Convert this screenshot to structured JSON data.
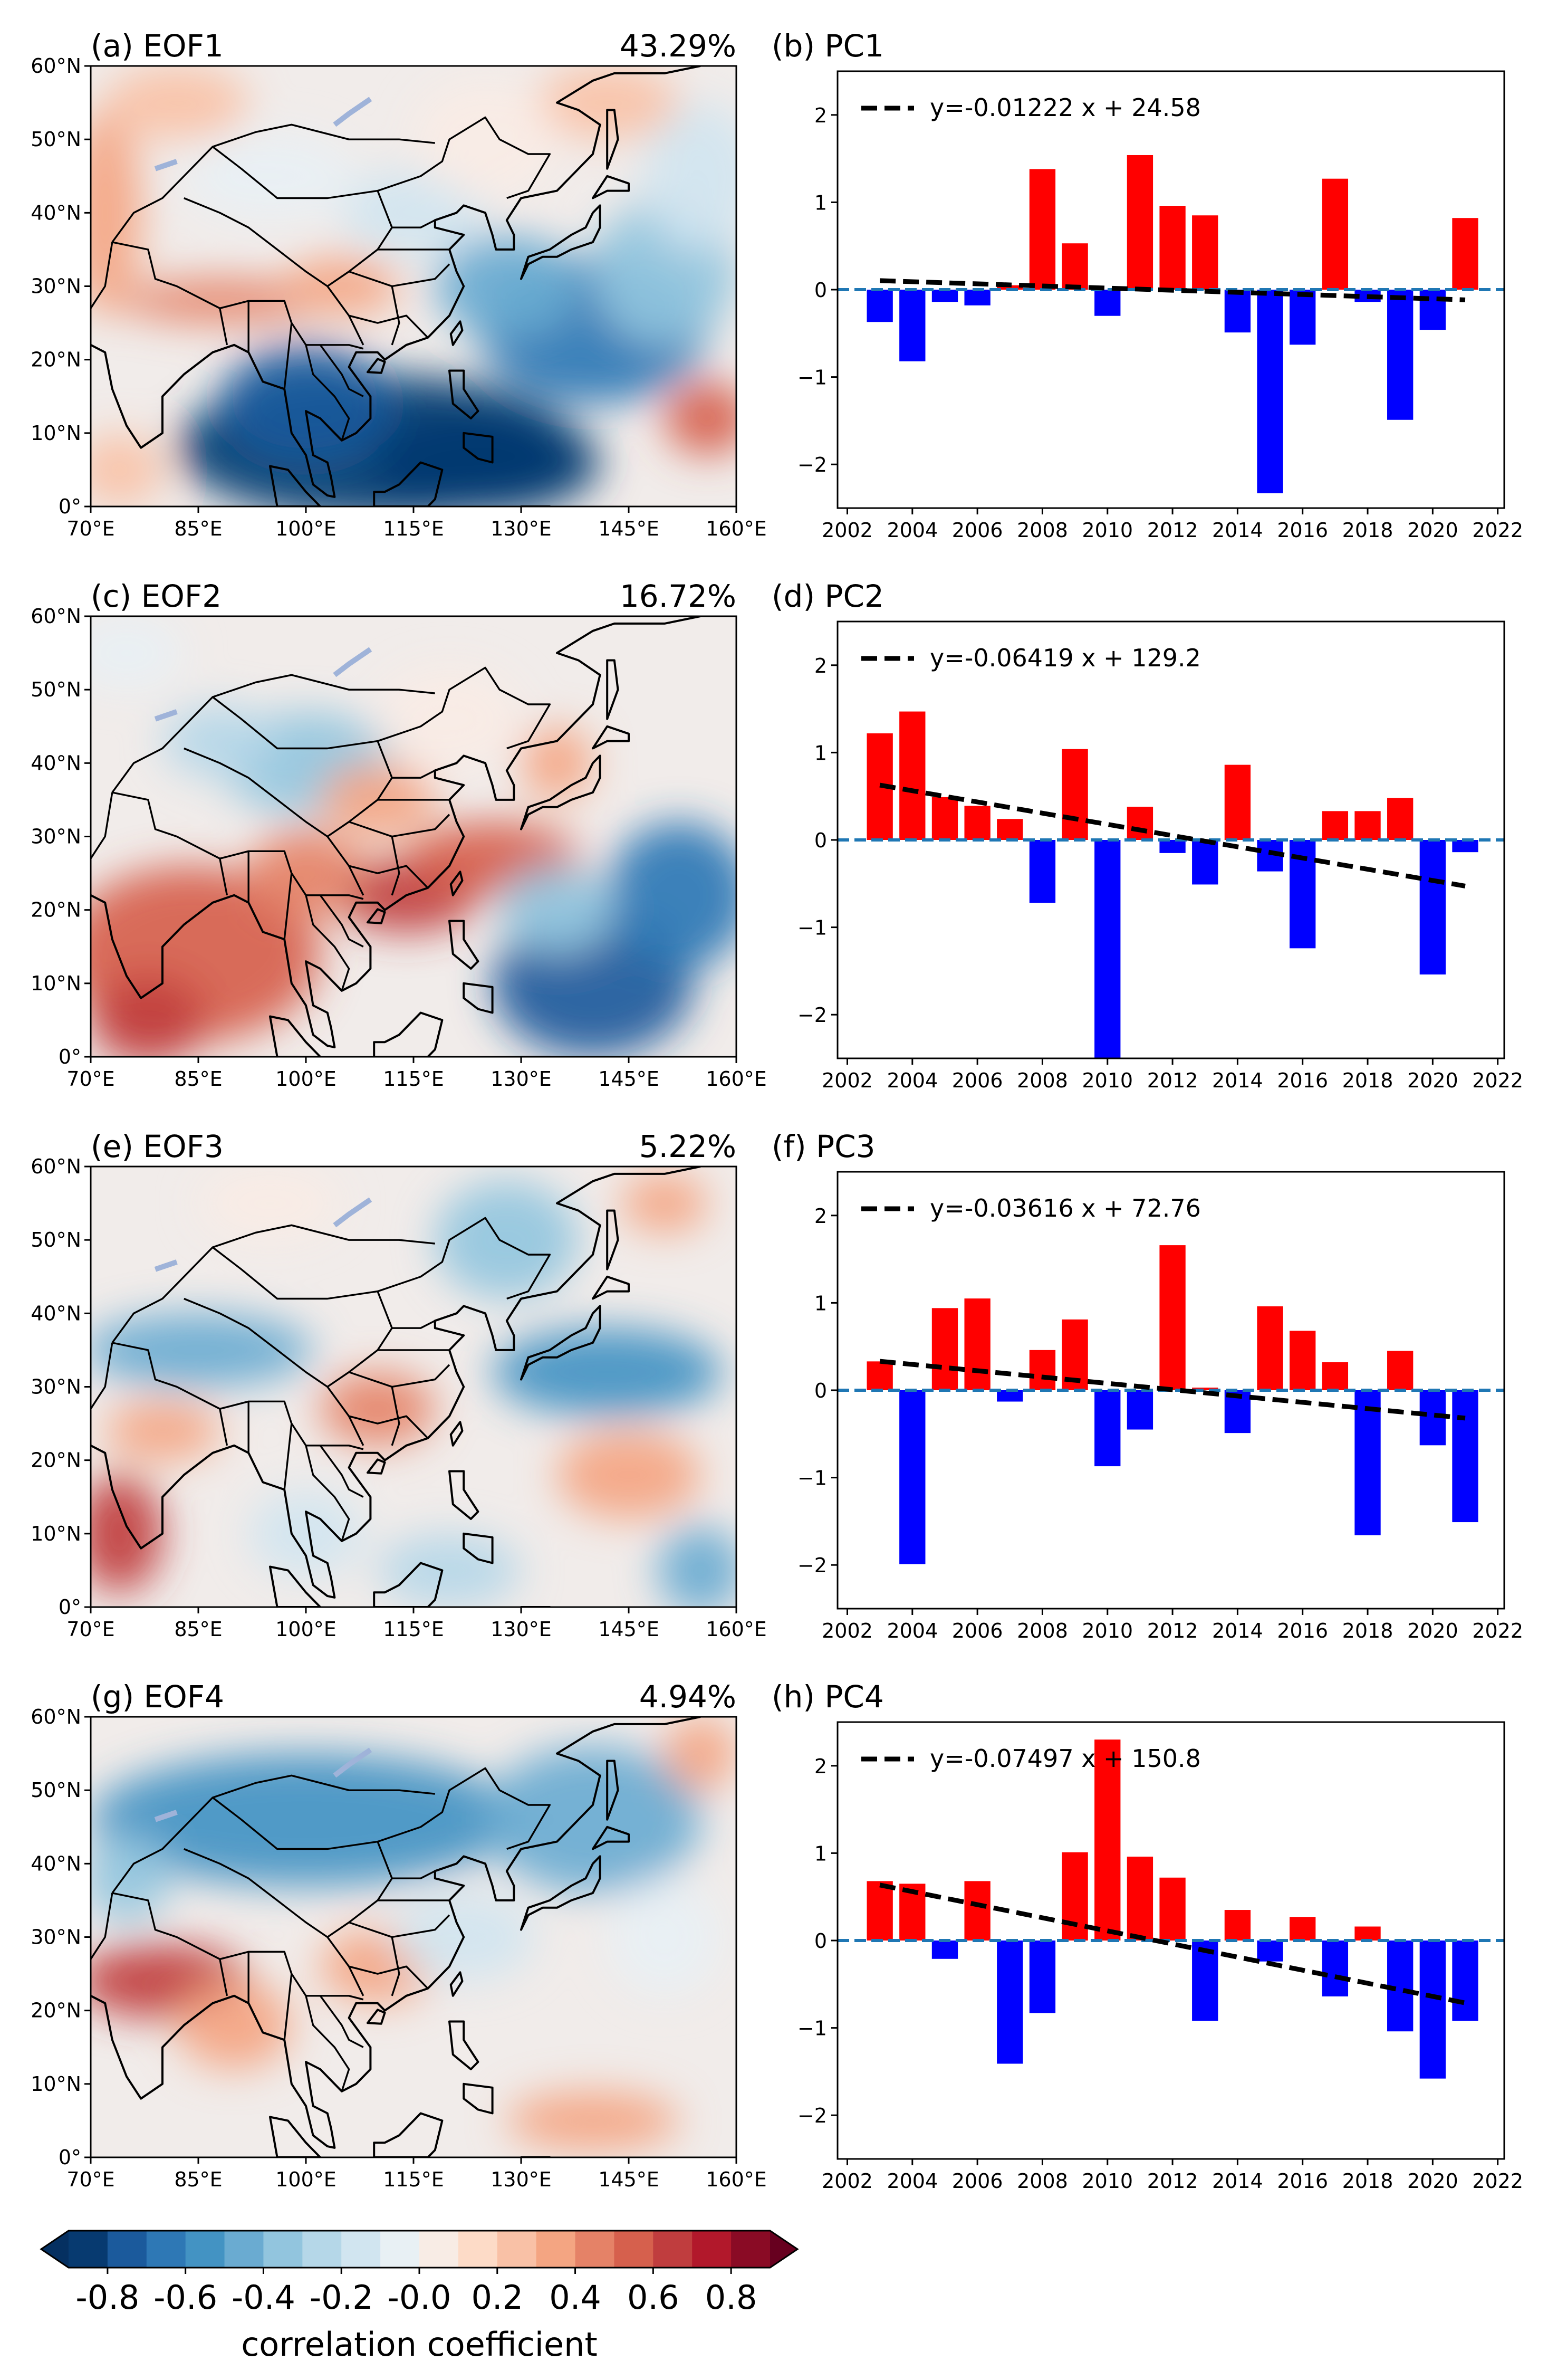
{
  "colors": {
    "positive_bar": "#ff0000",
    "negative_bar": "#0000ff",
    "zero_line": "#1f77b4",
    "trend_line": "#000000"
  },
  "map_axes": {
    "lon_ticks": [
      70,
      85,
      100,
      115,
      130,
      145,
      160
    ],
    "lon_labels": [
      "70°E",
      "85°E",
      "100°E",
      "115°E",
      "130°E",
      "145°E",
      "160°E"
    ],
    "lat_ticks": [
      0,
      10,
      20,
      30,
      40,
      50,
      60
    ],
    "lat_labels": [
      "0°",
      "10°N",
      "20°N",
      "30°N",
      "40°N",
      "50°N",
      "60°N"
    ],
    "lon_range": [
      70,
      160
    ],
    "lat_range": [
      0,
      60
    ]
  },
  "chart_data": [
    {
      "type": "heatmap",
      "title": "(a) EOF1",
      "variance": "43.29%"
    },
    {
      "type": "bar",
      "title": "(b) PC1",
      "legend": "y=-0.01222 x + 24.58",
      "slope": -0.01222,
      "intercept": 24.58,
      "x": [
        2003,
        2004,
        2005,
        2006,
        2007,
        2008,
        2009,
        2010,
        2011,
        2012,
        2013,
        2014,
        2015,
        2016,
        2017,
        2018,
        2019,
        2020,
        2021
      ],
      "values": [
        -0.37,
        -0.82,
        -0.14,
        -0.18,
        0.05,
        1.38,
        0.53,
        -0.3,
        1.54,
        0.96,
        0.85,
        -0.49,
        -2.33,
        -0.63,
        1.27,
        -0.14,
        -1.49,
        -0.46,
        0.82
      ],
      "xlim": [
        2001.7,
        2022.2
      ],
      "ylim": [
        -2.5,
        2.5
      ]
    },
    {
      "type": "heatmap",
      "title": "(c) EOF2",
      "variance": "16.72%"
    },
    {
      "type": "bar",
      "title": "(d) PC2",
      "legend": "y=-0.06419 x + 129.2",
      "slope": -0.06419,
      "intercept": 129.2,
      "x": [
        2003,
        2004,
        2005,
        2006,
        2007,
        2008,
        2009,
        2010,
        2011,
        2012,
        2013,
        2014,
        2015,
        2016,
        2017,
        2018,
        2019,
        2020,
        2021
      ],
      "values": [
        1.22,
        1.47,
        0.49,
        0.39,
        0.24,
        -0.72,
        1.04,
        -2.7,
        0.38,
        -0.15,
        -0.51,
        0.86,
        -0.36,
        -1.24,
        0.33,
        0.33,
        0.48,
        -1.54,
        -0.14
      ],
      "xlim": [
        2001.7,
        2022.2
      ],
      "ylim": [
        -2.5,
        2.5
      ]
    },
    {
      "type": "heatmap",
      "title": "(e) EOF3",
      "variance": "5.22%"
    },
    {
      "type": "bar",
      "title": "(f) PC3",
      "legend": "y=-0.03616 x + 72.76",
      "slope": -0.03616,
      "intercept": 72.76,
      "x": [
        2003,
        2004,
        2005,
        2006,
        2007,
        2008,
        2009,
        2010,
        2011,
        2012,
        2013,
        2014,
        2015,
        2016,
        2017,
        2018,
        2019,
        2020,
        2021
      ],
      "values": [
        0.33,
        -1.99,
        0.94,
        1.05,
        -0.13,
        0.46,
        0.81,
        -0.87,
        -0.45,
        1.66,
        0.03,
        -0.49,
        0.96,
        0.68,
        0.32,
        -1.66,
        0.45,
        -0.63,
        -1.51
      ],
      "xlim": [
        2001.7,
        2022.2
      ],
      "ylim": [
        -2.5,
        2.5
      ]
    },
    {
      "type": "heatmap",
      "title": "(g) EOF4",
      "variance": "4.94%"
    },
    {
      "type": "bar",
      "title": "(h) PC4",
      "legend": "y=-0.07497 x + 150.8",
      "slope": -0.07497,
      "intercept": 150.8,
      "x": [
        2003,
        2004,
        2005,
        2006,
        2007,
        2008,
        2009,
        2010,
        2011,
        2012,
        2013,
        2014,
        2015,
        2016,
        2017,
        2018,
        2019,
        2020,
        2021
      ],
      "values": [
        0.68,
        0.65,
        -0.21,
        0.68,
        -1.41,
        -0.83,
        1.01,
        2.3,
        0.96,
        0.72,
        -0.92,
        0.35,
        -0.24,
        0.27,
        -0.64,
        0.16,
        -1.04,
        -1.58,
        -0.92
      ],
      "xlim": [
        2001.7,
        2022.2
      ],
      "ylim": [
        -2.5,
        2.5
      ]
    }
  ],
  "bar_axes": {
    "xticks": [
      2002,
      2004,
      2006,
      2008,
      2010,
      2012,
      2014,
      2016,
      2018,
      2020,
      2022
    ],
    "yticks": [
      -2,
      -1,
      0,
      1,
      2
    ],
    "ytick_labels": [
      "−2",
      "−1",
      "0",
      "1",
      "2"
    ]
  },
  "colorbar": {
    "label": "correlation coefficient",
    "range": [
      -0.9,
      0.9
    ],
    "ticks": [
      -0.8,
      -0.6,
      -0.4,
      -0.2,
      0.0,
      0.2,
      0.4,
      0.6,
      0.8
    ],
    "tick_labels": [
      "-0.8",
      "-0.6",
      "-0.4",
      "-0.2",
      "-0.0",
      "0.2",
      "0.4",
      "0.6",
      "0.8"
    ],
    "colors": [
      "#073a70",
      "#1b5a9c",
      "#2e78b5",
      "#4393c3",
      "#6aabd1",
      "#92c5de",
      "#b5d7e8",
      "#d1e5f0",
      "#e8f0f4",
      "#f8ece5",
      "#fddbc7",
      "#f9c1a6",
      "#f4a582",
      "#e58267",
      "#d6604d",
      "#c03d3e",
      "#b2182b",
      "#8a0b25"
    ],
    "under_color": "#053061",
    "over_color": "#67001f"
  }
}
